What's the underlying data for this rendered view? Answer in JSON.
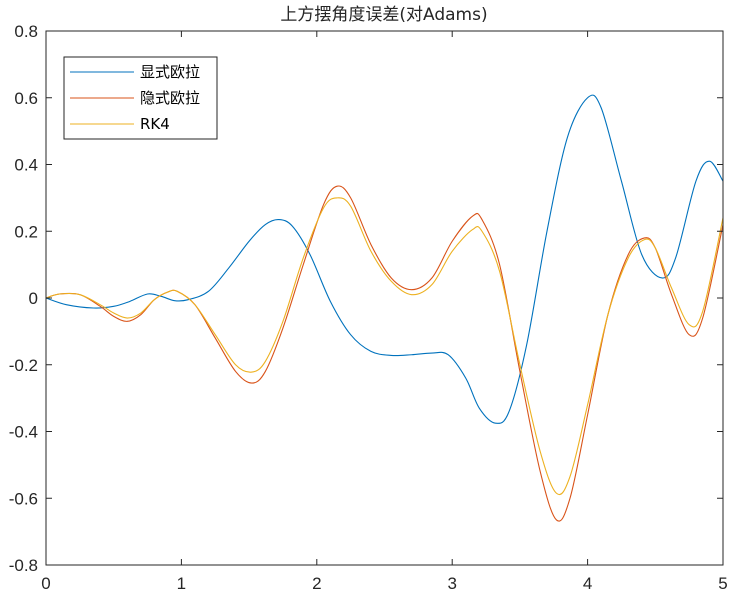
{
  "chart_data": {
    "type": "line",
    "title": "上方摆角度误差(对Adams)",
    "xlabel": "",
    "ylabel": "",
    "xlim": [
      0,
      5
    ],
    "ylim": [
      -0.8,
      0.8
    ],
    "xticks": [
      0,
      1,
      2,
      3,
      4,
      5
    ],
    "xtick_labels": [
      "0",
      "1",
      "2",
      "3",
      "4",
      "5"
    ],
    "yticks": [
      -0.8,
      -0.6,
      -0.4,
      -0.2,
      0,
      0.2,
      0.4,
      0.6,
      0.8
    ],
    "ytick_labels": [
      "-0.8",
      "-0.6",
      "-0.4",
      "-0.2",
      "0",
      "0.2",
      "0.4",
      "0.6",
      "0.8"
    ],
    "grid": false,
    "legend_position": "top-left",
    "series": [
      {
        "name": "显式欧拉",
        "color": "#0072BD",
        "points": [
          [
            0,
            0
          ],
          [
            0.15,
            -0.02
          ],
          [
            0.35,
            -0.03
          ],
          [
            0.5,
            -0.025
          ],
          [
            0.62,
            -0.01
          ],
          [
            0.75,
            0.012
          ],
          [
            0.85,
            0.005
          ],
          [
            0.95,
            -0.008
          ],
          [
            1.05,
            -0.005
          ],
          [
            1.2,
            0.02
          ],
          [
            1.35,
            0.09
          ],
          [
            1.5,
            0.17
          ],
          [
            1.62,
            0.22
          ],
          [
            1.72,
            0.235
          ],
          [
            1.82,
            0.215
          ],
          [
            1.95,
            0.13
          ],
          [
            2.1,
            -0.01
          ],
          [
            2.25,
            -0.11
          ],
          [
            2.4,
            -0.16
          ],
          [
            2.55,
            -0.172
          ],
          [
            2.7,
            -0.17
          ],
          [
            2.85,
            -0.165
          ],
          [
            2.97,
            -0.17
          ],
          [
            3.1,
            -0.24
          ],
          [
            3.2,
            -0.33
          ],
          [
            3.32,
            -0.375
          ],
          [
            3.42,
            -0.34
          ],
          [
            3.55,
            -0.14
          ],
          [
            3.7,
            0.2
          ],
          [
            3.85,
            0.48
          ],
          [
            4.0,
            0.6
          ],
          [
            4.1,
            0.57
          ],
          [
            4.25,
            0.35
          ],
          [
            4.4,
            0.13
          ],
          [
            4.55,
            0.06
          ],
          [
            4.65,
            0.12
          ],
          [
            4.8,
            0.35
          ],
          [
            4.9,
            0.41
          ],
          [
            5.0,
            0.35
          ]
        ]
      },
      {
        "name": "隐式欧拉",
        "color": "#D95319",
        "points": [
          [
            0,
            0
          ],
          [
            0.1,
            0.012
          ],
          [
            0.25,
            0.01
          ],
          [
            0.4,
            -0.025
          ],
          [
            0.5,
            -0.055
          ],
          [
            0.6,
            -0.07
          ],
          [
            0.7,
            -0.05
          ],
          [
            0.8,
            -0.005
          ],
          [
            0.9,
            0.018
          ],
          [
            0.97,
            0.02
          ],
          [
            1.1,
            -0.02
          ],
          [
            1.25,
            -0.12
          ],
          [
            1.4,
            -0.22
          ],
          [
            1.52,
            -0.255
          ],
          [
            1.62,
            -0.22
          ],
          [
            1.75,
            -0.09
          ],
          [
            1.9,
            0.1
          ],
          [
            2.05,
            0.28
          ],
          [
            2.15,
            0.335
          ],
          [
            2.25,
            0.3
          ],
          [
            2.4,
            0.16
          ],
          [
            2.55,
            0.06
          ],
          [
            2.7,
            0.025
          ],
          [
            2.85,
            0.06
          ],
          [
            3.0,
            0.17
          ],
          [
            3.15,
            0.245
          ],
          [
            3.22,
            0.235
          ],
          [
            3.35,
            0.1
          ],
          [
            3.5,
            -0.22
          ],
          [
            3.65,
            -0.52
          ],
          [
            3.77,
            -0.665
          ],
          [
            3.87,
            -0.6
          ],
          [
            4.0,
            -0.35
          ],
          [
            4.15,
            -0.05
          ],
          [
            4.3,
            0.13
          ],
          [
            4.42,
            0.18
          ],
          [
            4.5,
            0.15
          ],
          [
            4.62,
            0.01
          ],
          [
            4.75,
            -0.11
          ],
          [
            4.85,
            -0.06
          ],
          [
            5.0,
            0.22
          ]
        ]
      },
      {
        "name": "RK4",
        "color": "#EDB120",
        "points": [
          [
            0,
            0
          ],
          [
            0.1,
            0.012
          ],
          [
            0.25,
            0.01
          ],
          [
            0.4,
            -0.02
          ],
          [
            0.5,
            -0.045
          ],
          [
            0.6,
            -0.06
          ],
          [
            0.7,
            -0.045
          ],
          [
            0.8,
            -0.005
          ],
          [
            0.9,
            0.018
          ],
          [
            0.97,
            0.02
          ],
          [
            1.1,
            -0.02
          ],
          [
            1.25,
            -0.11
          ],
          [
            1.4,
            -0.2
          ],
          [
            1.52,
            -0.222
          ],
          [
            1.62,
            -0.19
          ],
          [
            1.75,
            -0.07
          ],
          [
            1.9,
            0.12
          ],
          [
            2.05,
            0.27
          ],
          [
            2.15,
            0.3
          ],
          [
            2.25,
            0.275
          ],
          [
            2.4,
            0.14
          ],
          [
            2.55,
            0.05
          ],
          [
            2.7,
            0.01
          ],
          [
            2.85,
            0.04
          ],
          [
            3.0,
            0.14
          ],
          [
            3.15,
            0.205
          ],
          [
            3.22,
            0.2
          ],
          [
            3.35,
            0.08
          ],
          [
            3.5,
            -0.2
          ],
          [
            3.65,
            -0.46
          ],
          [
            3.77,
            -0.585
          ],
          [
            3.87,
            -0.535
          ],
          [
            4.0,
            -0.32
          ],
          [
            4.15,
            -0.05
          ],
          [
            4.3,
            0.12
          ],
          [
            4.42,
            0.175
          ],
          [
            4.5,
            0.15
          ],
          [
            4.62,
            0.03
          ],
          [
            4.75,
            -0.08
          ],
          [
            4.85,
            -0.04
          ],
          [
            5.0,
            0.24
          ]
        ]
      }
    ]
  }
}
